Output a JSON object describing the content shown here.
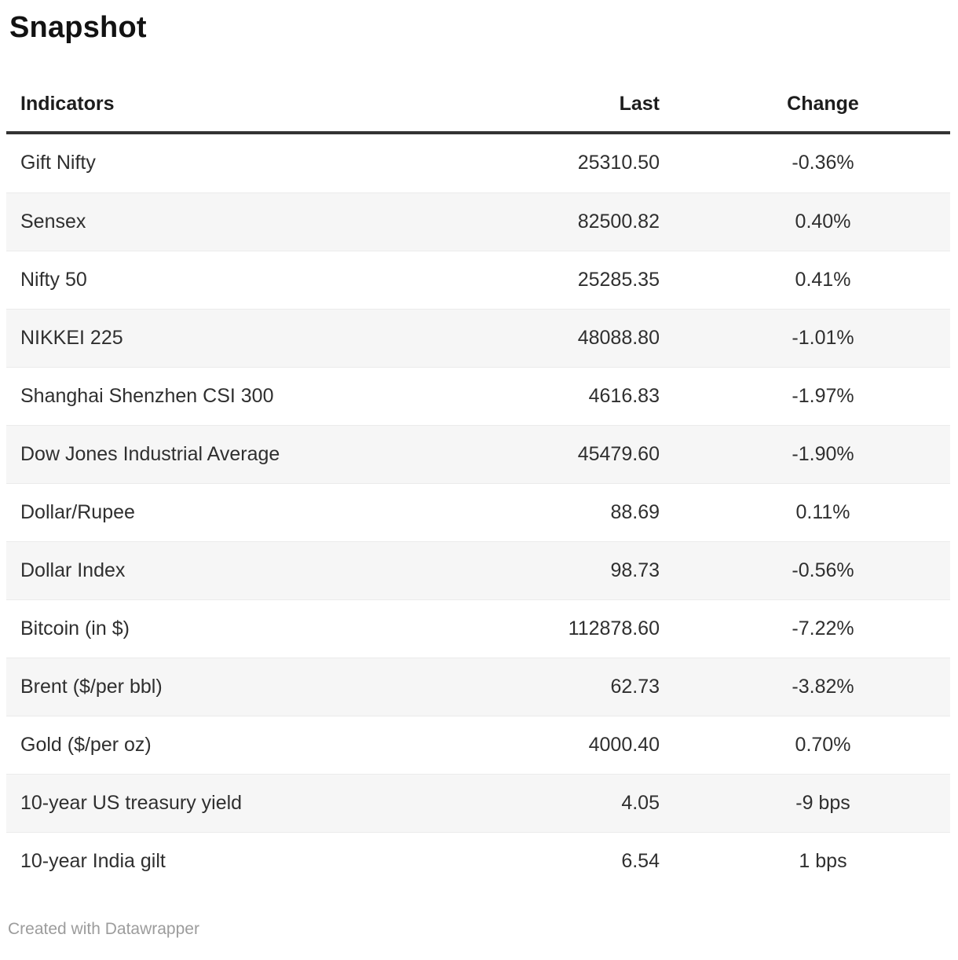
{
  "title": "Snapshot",
  "table": {
    "columns": [
      {
        "label": "Indicators",
        "align": "left"
      },
      {
        "label": "Last",
        "align": "right"
      },
      {
        "label": "Change",
        "align": "center"
      }
    ],
    "rows": [
      {
        "indicator": "Gift Nifty",
        "last": "25310.50",
        "change": "-0.36%"
      },
      {
        "indicator": "Sensex",
        "last": "82500.82",
        "change": "0.40%"
      },
      {
        "indicator": "Nifty 50",
        "last": "25285.35",
        "change": "0.41%"
      },
      {
        "indicator": "NIKKEI 225",
        "last": "48088.80",
        "change": "-1.01%"
      },
      {
        "indicator": "Shanghai Shenzhen CSI 300",
        "last": "4616.83",
        "change": "-1.97%"
      },
      {
        "indicator": "Dow Jones Industrial Average",
        "last": "45479.60",
        "change": "-1.90%"
      },
      {
        "indicator": "Dollar/Rupee",
        "last": "88.69",
        "change": "0.11%"
      },
      {
        "indicator": "Dollar Index",
        "last": "98.73",
        "change": "-0.56%"
      },
      {
        "indicator": "Bitcoin (in $)",
        "last": "112878.60",
        "change": "-7.22%"
      },
      {
        "indicator": "Brent ($/per bbl)",
        "last": "62.73",
        "change": "-3.82%"
      },
      {
        "indicator": "Gold ($/per oz)",
        "last": "4000.40",
        "change": "0.70%"
      },
      {
        "indicator": "10-year US treasury yield",
        "last": "4.05",
        "change": "-9 bps"
      },
      {
        "indicator": "10-year India gilt",
        "last": "6.54",
        "change": "1 bps"
      }
    ]
  },
  "footer": {
    "attribution": "Created with Datawrapper"
  },
  "colors": {
    "stripe": "#f6f6f6",
    "row_separator": "#ebebeb",
    "header_rule": "#333333",
    "text": "#2f2f2f",
    "title_text": "#121212",
    "footer_text": "#9c9c9c",
    "background": "#ffffff"
  },
  "chart_data": {
    "type": "table",
    "title": "Snapshot",
    "columns": [
      "Indicators",
      "Last",
      "Change"
    ],
    "rows": [
      [
        "Gift Nifty",
        25310.5,
        "-0.36%"
      ],
      [
        "Sensex",
        82500.82,
        "0.40%"
      ],
      [
        "Nifty 50",
        25285.35,
        "0.41%"
      ],
      [
        "NIKKEI 225",
        48088.8,
        "-1.01%"
      ],
      [
        "Shanghai Shenzhen CSI 300",
        4616.83,
        "-1.97%"
      ],
      [
        "Dow Jones Industrial Average",
        45479.6,
        "-1.90%"
      ],
      [
        "Dollar/Rupee",
        88.69,
        "0.11%"
      ],
      [
        "Dollar Index",
        98.73,
        "-0.56%"
      ],
      [
        "Bitcoin (in $)",
        112878.6,
        "-7.22%"
      ],
      [
        "Brent ($/per bbl)",
        62.73,
        "-3.82%"
      ],
      [
        "Gold ($/per oz)",
        4000.4,
        "0.70%"
      ],
      [
        "10-year US treasury yield",
        4.05,
        "-9 bps"
      ],
      [
        "10-year India gilt",
        6.54,
        "1 bps"
      ]
    ],
    "layout_hints": {
      "zebra_striping": true,
      "header_rule": "thick dark line under header",
      "column_alignment": [
        "left",
        "right",
        "center"
      ],
      "attribution": "Created with Datawrapper"
    }
  }
}
